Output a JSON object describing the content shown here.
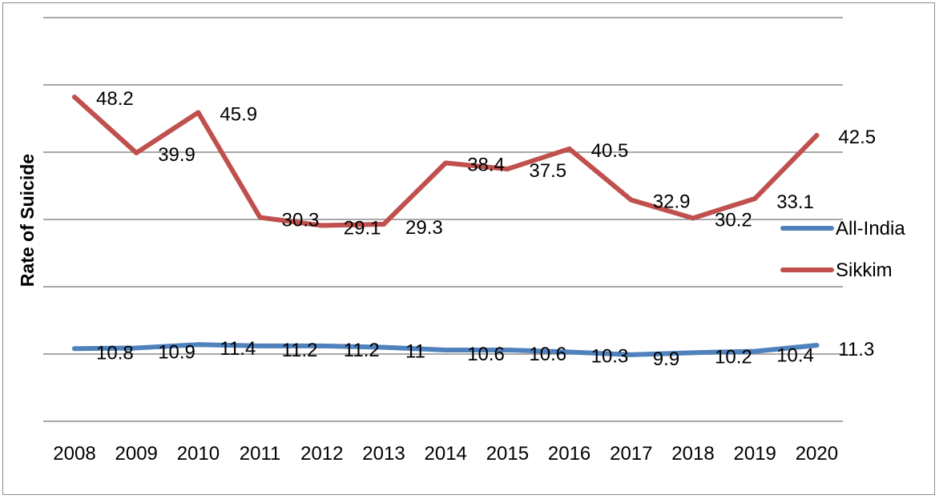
{
  "chart_data": {
    "type": "line",
    "title": "",
    "xlabel": "",
    "ylabel": "Rate of Suicide",
    "ylim": [
      0,
      60
    ],
    "grid": true,
    "legend_position": "right",
    "categories": [
      "2008",
      "2009",
      "2010",
      "2011",
      "2012",
      "2013",
      "2014",
      "2015",
      "2016",
      "2017",
      "2018",
      "2019",
      "2020"
    ],
    "series": [
      {
        "name": "All-India",
        "color": "#4f81bd",
        "values": [
          10.8,
          10.9,
          11.4,
          11.2,
          11.2,
          11,
          10.6,
          10.6,
          10.3,
          9.9,
          10.2,
          10.4,
          11.3
        ],
        "labels": [
          "10.8",
          "10.9",
          "11.4",
          "11.2",
          "11.2",
          "11",
          "10.6",
          "10.6",
          "10.3",
          "9.9",
          "10.2",
          "10.4",
          "11.3"
        ]
      },
      {
        "name": "Sikkim",
        "color": "#c0504d",
        "values": [
          48.2,
          39.9,
          45.9,
          30.3,
          29.1,
          29.3,
          38.4,
          37.5,
          40.5,
          32.9,
          30.2,
          33.1,
          42.5
        ],
        "labels": [
          "48.2",
          "39.9",
          "45.9",
          "30.3",
          "29.1",
          "29.3",
          "38.4",
          "37.5",
          "40.5",
          "32.9",
          "30.2",
          "33.1",
          "42.5"
        ]
      }
    ]
  }
}
